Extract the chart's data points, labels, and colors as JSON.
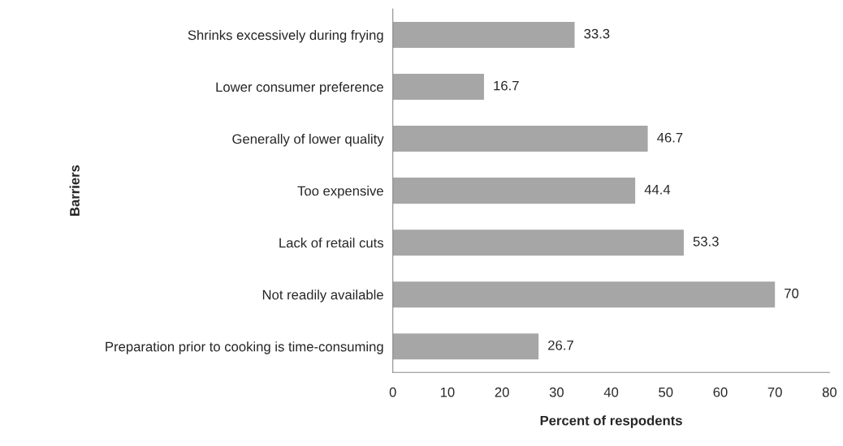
{
  "chart_data": {
    "type": "bar",
    "orientation": "horizontal",
    "xlabel": "Percent of respodents",
    "ylabel": "Barriers",
    "categories": [
      "Shrinks excessively during frying",
      "Lower consumer preference",
      "Generally of lower quality",
      "Too expensive",
      "Lack of retail cuts",
      "Not readily available",
      "Preparation prior to cooking is time-consuming"
    ],
    "values": [
      33.3,
      16.7,
      46.7,
      44.4,
      53.3,
      70,
      26.7
    ],
    "color": "#a6a6a6",
    "xlim": [
      0,
      80
    ],
    "xticks": [
      0,
      10,
      20,
      30,
      40,
      50,
      60,
      70,
      80
    ],
    "data_labels": true,
    "grid": false,
    "legend": false
  }
}
